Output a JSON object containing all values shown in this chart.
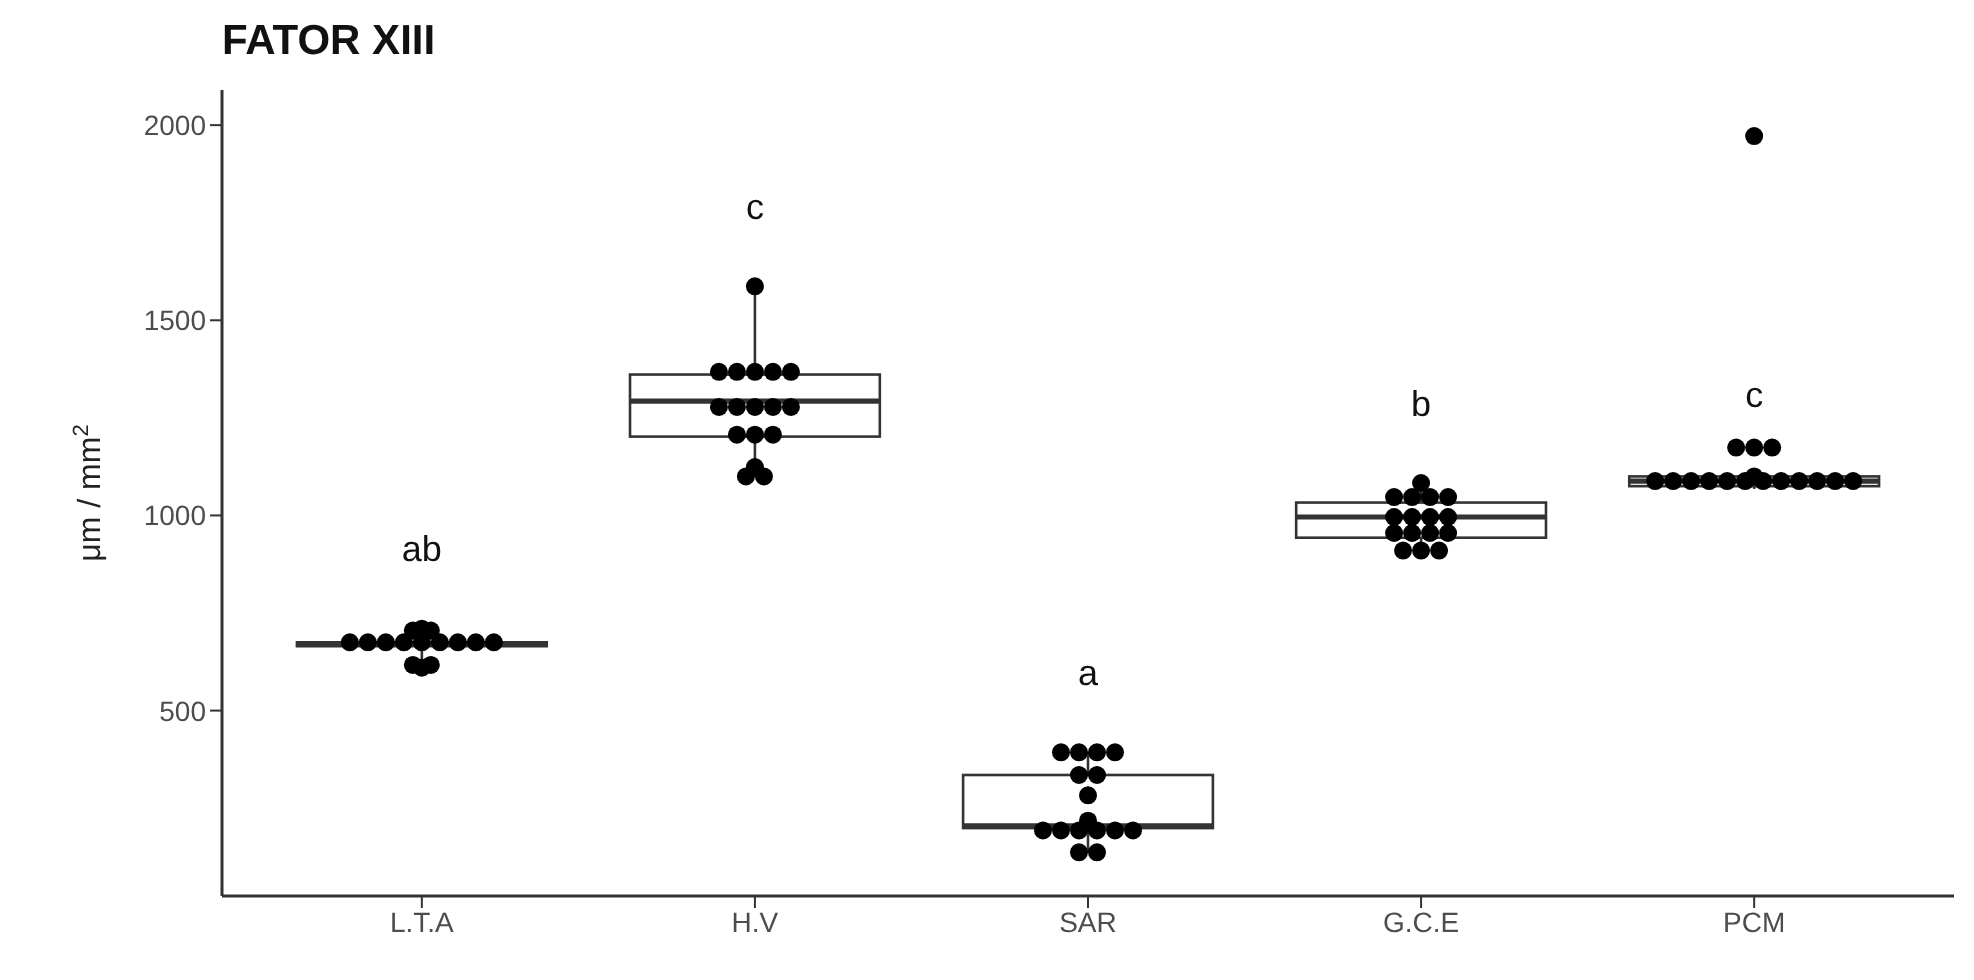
{
  "chart_data": {
    "type": "box",
    "title": "FATOR XIII",
    "ylabel": "μm / mm$^{2}$",
    "categories": [
      "L.T.A",
      "H.V",
      "SAR",
      "G.C.E",
      "PCM"
    ],
    "ylim": [
      25,
      2090
    ],
    "yticks": [
      500,
      1000,
      1500,
      2000
    ],
    "grid": false,
    "series": [
      {
        "type": "box",
        "color": "#333333",
        "boxes": [
          {
            "low": 610,
            "q1": 665,
            "median": 670,
            "q3": 675,
            "high": 710
          },
          {
            "low": 1100,
            "q1": 1202,
            "median": 1293,
            "q3": 1361,
            "high": 1587
          },
          {
            "low": 137,
            "q1": 199,
            "median": 205,
            "q3": 335,
            "high": 393
          },
          {
            "low": 910,
            "q1": 943,
            "median": 996,
            "q3": 1033,
            "high": 1083
          },
          {
            "low": 1068,
            "q1": 1075,
            "median": 1088,
            "q3": 1100,
            "high": 1106
          }
        ]
      },
      {
        "type": "scatter",
        "color": "#000000",
        "marker": "circle",
        "x": [
          "L.T.A",
          "L.T.A",
          "L.T.A",
          "L.T.A",
          "L.T.A",
          "L.T.A",
          "L.T.A",
          "L.T.A",
          "L.T.A",
          "L.T.A",
          "L.T.A",
          "L.T.A",
          "L.T.A",
          "L.T.A",
          "L.T.A",
          "H.V",
          "H.V",
          "H.V",
          "H.V",
          "H.V",
          "H.V",
          "H.V",
          "H.V",
          "H.V",
          "H.V",
          "H.V",
          "H.V",
          "H.V",
          "H.V",
          "H.V",
          "H.V",
          "H.V",
          "SAR",
          "SAR",
          "SAR",
          "SAR",
          "SAR",
          "SAR",
          "SAR",
          "SAR",
          "SAR",
          "SAR",
          "SAR",
          "SAR",
          "SAR",
          "SAR",
          "SAR",
          "SAR",
          "G.C.E",
          "G.C.E",
          "G.C.E",
          "G.C.E",
          "G.C.E",
          "G.C.E",
          "G.C.E",
          "G.C.E",
          "G.C.E",
          "G.C.E",
          "G.C.E",
          "G.C.E",
          "G.C.E",
          "G.C.E",
          "G.C.E",
          "G.C.E",
          "PCM",
          "PCM",
          "PCM",
          "PCM",
          "PCM",
          "PCM",
          "PCM",
          "PCM",
          "PCM",
          "PCM",
          "PCM",
          "PCM",
          "PCM",
          "PCM",
          "PCM",
          "PCM",
          "PCM"
        ],
        "values": [
          617,
          617,
          610,
          675,
          675,
          675,
          675,
          675,
          675,
          675,
          675,
          675,
          705,
          710,
          705,
          1587,
          1368,
          1368,
          1368,
          1368,
          1368,
          1278,
          1278,
          1278,
          1278,
          1278,
          1207,
          1207,
          1207,
          1124,
          1100,
          1100,
          393,
          393,
          393,
          393,
          335,
          335,
          283,
          218,
          193,
          193,
          193,
          193,
          193,
          193,
          137,
          137,
          1083,
          1047,
          1047,
          1047,
          1047,
          996,
          996,
          996,
          996,
          955,
          955,
          955,
          955,
          910,
          910,
          910,
          1972,
          1174,
          1174,
          1174,
          1100,
          1088,
          1088,
          1088,
          1088,
          1088,
          1088,
          1088,
          1088,
          1088,
          1088,
          1088,
          1088
        ]
      }
    ],
    "annotations": [
      "ab",
      "c",
      "a",
      "b",
      "c"
    ]
  }
}
